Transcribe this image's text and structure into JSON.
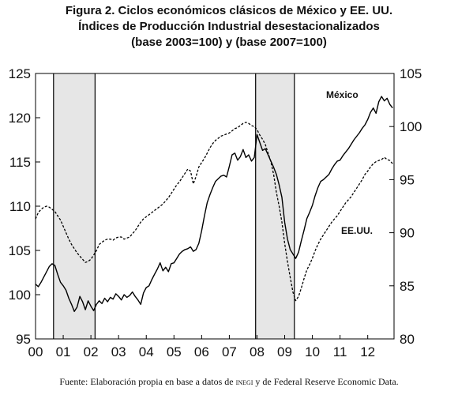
{
  "title": {
    "line1": "Figura 2. Ciclos económicos clásicos de México y EE. UU.",
    "line2": "Índices de Producción Industrial desestacionalizados",
    "line3": "(base 2003=100) y (base 2007=100)"
  },
  "source": {
    "prefix": "Fuente: Elaboración propia en base a datos de ",
    "inegi": "inegi",
    "suffix": " y de Federal Reserve Economic Data."
  },
  "chart_data": {
    "type": "line",
    "x_axis": {
      "range": [
        2000,
        2012.95
      ],
      "tick_labels": [
        "00",
        "01",
        "02",
        "03",
        "04",
        "05",
        "06",
        "07",
        "08",
        "09",
        "10",
        "11",
        "12"
      ],
      "tick_positions": [
        2000,
        2001,
        2002,
        2003,
        2004,
        2005,
        2006,
        2007,
        2008,
        2009,
        2010,
        2011,
        2012
      ]
    },
    "y_left": {
      "range": [
        95,
        125
      ],
      "ticks": [
        95,
        100,
        105,
        110,
        115,
        120,
        125
      ],
      "tick_labels": [
        "95",
        "100",
        "105",
        "110",
        "115",
        "120",
        "125"
      ]
    },
    "y_right": {
      "range": [
        80,
        105
      ],
      "ticks": [
        80,
        85,
        90,
        95,
        100,
        105
      ],
      "tick_labels": [
        "80",
        "85",
        "90",
        "95",
        "100",
        "105"
      ]
    },
    "recessions": [
      {
        "start": 2000.65,
        "end": 2002.15
      },
      {
        "start": 2007.95,
        "end": 2009.35
      }
    ],
    "series": [
      {
        "name": "México",
        "label": "México",
        "axis": "left",
        "style": "solid",
        "points": [
          [
            2000.0,
            101.2
          ],
          [
            2000.1,
            100.9
          ],
          [
            2000.2,
            101.4
          ],
          [
            2000.3,
            102.0
          ],
          [
            2000.4,
            102.6
          ],
          [
            2000.5,
            103.2
          ],
          [
            2000.6,
            103.5
          ],
          [
            2000.7,
            103.3
          ],
          [
            2000.8,
            102.3
          ],
          [
            2000.9,
            101.4
          ],
          [
            2001.0,
            101.0
          ],
          [
            2001.1,
            100.5
          ],
          [
            2001.2,
            99.6
          ],
          [
            2001.3,
            98.9
          ],
          [
            2001.4,
            98.1
          ],
          [
            2001.5,
            98.6
          ],
          [
            2001.6,
            99.8
          ],
          [
            2001.7,
            99.2
          ],
          [
            2001.8,
            98.3
          ],
          [
            2001.9,
            99.3
          ],
          [
            2002.0,
            98.7
          ],
          [
            2002.1,
            98.2
          ],
          [
            2002.2,
            98.9
          ],
          [
            2002.3,
            99.3
          ],
          [
            2002.4,
            99.0
          ],
          [
            2002.5,
            99.6
          ],
          [
            2002.6,
            99.2
          ],
          [
            2002.7,
            99.7
          ],
          [
            2002.8,
            99.5
          ],
          [
            2002.9,
            100.1
          ],
          [
            2003.0,
            99.8
          ],
          [
            2003.1,
            99.4
          ],
          [
            2003.2,
            100.0
          ],
          [
            2003.3,
            99.7
          ],
          [
            2003.4,
            99.9
          ],
          [
            2003.5,
            100.3
          ],
          [
            2003.6,
            99.8
          ],
          [
            2003.7,
            99.4
          ],
          [
            2003.8,
            98.9
          ],
          [
            2003.9,
            100.2
          ],
          [
            2004.0,
            100.8
          ],
          [
            2004.1,
            101.0
          ],
          [
            2004.2,
            101.7
          ],
          [
            2004.3,
            102.3
          ],
          [
            2004.4,
            102.9
          ],
          [
            2004.5,
            103.6
          ],
          [
            2004.6,
            102.7
          ],
          [
            2004.7,
            103.1
          ],
          [
            2004.8,
            102.6
          ],
          [
            2004.9,
            103.5
          ],
          [
            2005.0,
            103.6
          ],
          [
            2005.1,
            104.1
          ],
          [
            2005.2,
            104.6
          ],
          [
            2005.3,
            104.9
          ],
          [
            2005.4,
            105.1
          ],
          [
            2005.5,
            105.2
          ],
          [
            2005.6,
            105.4
          ],
          [
            2005.7,
            104.9
          ],
          [
            2005.8,
            105.1
          ],
          [
            2005.9,
            105.8
          ],
          [
            2006.0,
            107.2
          ],
          [
            2006.1,
            108.9
          ],
          [
            2006.2,
            110.4
          ],
          [
            2006.3,
            111.3
          ],
          [
            2006.4,
            112.1
          ],
          [
            2006.5,
            112.8
          ],
          [
            2006.6,
            113.1
          ],
          [
            2006.7,
            113.4
          ],
          [
            2006.8,
            113.5
          ],
          [
            2006.9,
            113.3
          ],
          [
            2007.0,
            114.5
          ],
          [
            2007.1,
            115.8
          ],
          [
            2007.2,
            116.0
          ],
          [
            2007.3,
            115.2
          ],
          [
            2007.4,
            115.6
          ],
          [
            2007.5,
            116.4
          ],
          [
            2007.6,
            115.5
          ],
          [
            2007.7,
            115.8
          ],
          [
            2007.8,
            115.1
          ],
          [
            2007.9,
            115.5
          ],
          [
            2008.0,
            118.1
          ],
          [
            2008.1,
            117.2
          ],
          [
            2008.2,
            116.3
          ],
          [
            2008.3,
            116.5
          ],
          [
            2008.4,
            115.8
          ],
          [
            2008.5,
            115.1
          ],
          [
            2008.6,
            114.4
          ],
          [
            2008.7,
            113.6
          ],
          [
            2008.8,
            112.4
          ],
          [
            2008.9,
            111.0
          ],
          [
            2009.0,
            108.2
          ],
          [
            2009.1,
            106.3
          ],
          [
            2009.2,
            105.1
          ],
          [
            2009.3,
            104.6
          ],
          [
            2009.4,
            104.1
          ],
          [
            2009.5,
            104.8
          ],
          [
            2009.6,
            106.1
          ],
          [
            2009.7,
            107.3
          ],
          [
            2009.8,
            108.6
          ],
          [
            2009.9,
            109.3
          ],
          [
            2010.0,
            110.1
          ],
          [
            2010.1,
            111.2
          ],
          [
            2010.2,
            112.1
          ],
          [
            2010.3,
            112.8
          ],
          [
            2010.4,
            113.0
          ],
          [
            2010.5,
            113.3
          ],
          [
            2010.6,
            113.6
          ],
          [
            2010.7,
            114.2
          ],
          [
            2010.8,
            114.7
          ],
          [
            2010.9,
            115.1
          ],
          [
            2011.0,
            115.2
          ],
          [
            2011.1,
            115.7
          ],
          [
            2011.2,
            116.1
          ],
          [
            2011.3,
            116.5
          ],
          [
            2011.4,
            117.0
          ],
          [
            2011.5,
            117.5
          ],
          [
            2011.6,
            117.9
          ],
          [
            2011.7,
            118.3
          ],
          [
            2011.8,
            118.8
          ],
          [
            2011.9,
            119.2
          ],
          [
            2012.0,
            119.8
          ],
          [
            2012.1,
            120.6
          ],
          [
            2012.2,
            121.1
          ],
          [
            2012.3,
            120.5
          ],
          [
            2012.4,
            121.8
          ],
          [
            2012.5,
            122.4
          ],
          [
            2012.6,
            121.9
          ],
          [
            2012.7,
            122.2
          ],
          [
            2012.8,
            121.5
          ],
          [
            2012.9,
            121.1
          ]
        ]
      },
      {
        "name": "EE.UU.",
        "label": "EE.UU.",
        "axis": "right",
        "style": "dashed",
        "points": [
          [
            2000.0,
            91.3
          ],
          [
            2000.1,
            91.9
          ],
          [
            2000.2,
            92.2
          ],
          [
            2000.3,
            92.4
          ],
          [
            2000.4,
            92.5
          ],
          [
            2000.5,
            92.4
          ],
          [
            2000.6,
            92.2
          ],
          [
            2000.7,
            92.0
          ],
          [
            2000.8,
            91.6
          ],
          [
            2000.9,
            91.2
          ],
          [
            2001.0,
            90.6
          ],
          [
            2001.1,
            90.0
          ],
          [
            2001.2,
            89.4
          ],
          [
            2001.3,
            88.9
          ],
          [
            2001.4,
            88.5
          ],
          [
            2001.5,
            88.1
          ],
          [
            2001.6,
            87.8
          ],
          [
            2001.7,
            87.5
          ],
          [
            2001.8,
            87.2
          ],
          [
            2001.9,
            87.3
          ],
          [
            2002.0,
            87.5
          ],
          [
            2002.1,
            87.9
          ],
          [
            2002.2,
            88.3
          ],
          [
            2002.3,
            88.9
          ],
          [
            2002.4,
            89.1
          ],
          [
            2002.5,
            89.3
          ],
          [
            2002.6,
            89.4
          ],
          [
            2002.7,
            89.4
          ],
          [
            2002.8,
            89.3
          ],
          [
            2002.9,
            89.5
          ],
          [
            2003.0,
            89.6
          ],
          [
            2003.1,
            89.6
          ],
          [
            2003.2,
            89.4
          ],
          [
            2003.3,
            89.5
          ],
          [
            2003.4,
            89.6
          ],
          [
            2003.5,
            89.9
          ],
          [
            2003.6,
            90.2
          ],
          [
            2003.7,
            90.6
          ],
          [
            2003.8,
            91.0
          ],
          [
            2003.9,
            91.3
          ],
          [
            2004.0,
            91.5
          ],
          [
            2004.1,
            91.7
          ],
          [
            2004.2,
            91.9
          ],
          [
            2004.3,
            92.1
          ],
          [
            2004.4,
            92.3
          ],
          [
            2004.5,
            92.5
          ],
          [
            2004.6,
            92.7
          ],
          [
            2004.7,
            93.0
          ],
          [
            2004.8,
            93.3
          ],
          [
            2004.9,
            93.7
          ],
          [
            2005.0,
            94.1
          ],
          [
            2005.1,
            94.5
          ],
          [
            2005.2,
            94.8
          ],
          [
            2005.3,
            95.2
          ],
          [
            2005.4,
            95.6
          ],
          [
            2005.5,
            96.0
          ],
          [
            2005.6,
            95.8
          ],
          [
            2005.7,
            94.6
          ],
          [
            2005.8,
            95.3
          ],
          [
            2005.9,
            96.2
          ],
          [
            2006.0,
            96.6
          ],
          [
            2006.1,
            97.0
          ],
          [
            2006.2,
            97.5
          ],
          [
            2006.3,
            98.0
          ],
          [
            2006.4,
            98.4
          ],
          [
            2006.5,
            98.7
          ],
          [
            2006.6,
            98.9
          ],
          [
            2006.7,
            99.1
          ],
          [
            2006.8,
            99.2
          ],
          [
            2006.9,
            99.3
          ],
          [
            2007.0,
            99.4
          ],
          [
            2007.1,
            99.6
          ],
          [
            2007.2,
            99.8
          ],
          [
            2007.3,
            99.9
          ],
          [
            2007.4,
            100.1
          ],
          [
            2007.5,
            100.3
          ],
          [
            2007.6,
            100.4
          ],
          [
            2007.7,
            100.3
          ],
          [
            2007.8,
            100.1
          ],
          [
            2007.9,
            100.0
          ],
          [
            2008.0,
            99.7
          ],
          [
            2008.1,
            99.2
          ],
          [
            2008.2,
            98.8
          ],
          [
            2008.3,
            98.3
          ],
          [
            2008.4,
            97.5
          ],
          [
            2008.5,
            96.7
          ],
          [
            2008.6,
            95.5
          ],
          [
            2008.7,
            93.8
          ],
          [
            2008.8,
            92.5
          ],
          [
            2008.9,
            91.0
          ],
          [
            2009.0,
            89.0
          ],
          [
            2009.1,
            87.3
          ],
          [
            2009.2,
            85.8
          ],
          [
            2009.3,
            84.4
          ],
          [
            2009.4,
            83.6
          ],
          [
            2009.5,
            84.0
          ],
          [
            2009.6,
            84.8
          ],
          [
            2009.7,
            85.7
          ],
          [
            2009.8,
            86.5
          ],
          [
            2009.9,
            87.0
          ],
          [
            2010.0,
            87.6
          ],
          [
            2010.1,
            88.3
          ],
          [
            2010.2,
            88.9
          ],
          [
            2010.3,
            89.4
          ],
          [
            2010.4,
            89.8
          ],
          [
            2010.5,
            90.2
          ],
          [
            2010.6,
            90.6
          ],
          [
            2010.7,
            91.0
          ],
          [
            2010.8,
            91.3
          ],
          [
            2010.9,
            91.6
          ],
          [
            2011.0,
            92.0
          ],
          [
            2011.1,
            92.4
          ],
          [
            2011.2,
            92.8
          ],
          [
            2011.3,
            93.1
          ],
          [
            2011.4,
            93.4
          ],
          [
            2011.5,
            93.8
          ],
          [
            2011.6,
            94.2
          ],
          [
            2011.7,
            94.6
          ],
          [
            2011.8,
            95.0
          ],
          [
            2011.9,
            95.5
          ],
          [
            2012.0,
            95.8
          ],
          [
            2012.1,
            96.2
          ],
          [
            2012.2,
            96.5
          ],
          [
            2012.3,
            96.7
          ],
          [
            2012.4,
            96.8
          ],
          [
            2012.5,
            96.9
          ],
          [
            2012.6,
            97.1
          ],
          [
            2012.7,
            96.9
          ],
          [
            2012.8,
            96.8
          ],
          [
            2012.9,
            96.5
          ]
        ]
      }
    ],
    "grid": false
  }
}
